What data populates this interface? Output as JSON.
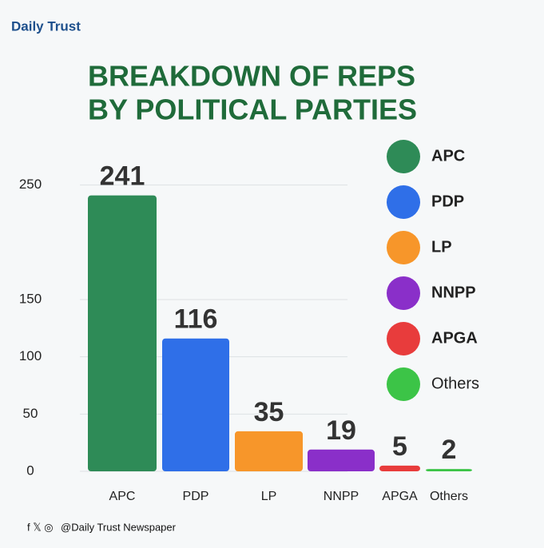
{
  "brand": "Daily Trust",
  "footer": "@Daily Trust Newspaper",
  "chart_data": {
    "type": "bar",
    "title": [
      "BREAKDOWN OF REPS",
      "BY POLITICAL PARTIES"
    ],
    "categories": [
      "APC",
      "PDP",
      "LP",
      "NNPP",
      "APGA",
      "Others"
    ],
    "values": [
      241,
      116,
      35,
      19,
      5,
      2
    ],
    "colors": [
      "#2e8b57",
      "#2f6fe8",
      "#f7962a",
      "#8a2fc9",
      "#e83c3c",
      "#3cc447"
    ],
    "ylim": [
      0,
      270
    ],
    "yticks": [
      0,
      50,
      100,
      150,
      250
    ],
    "grid": true,
    "legend": "right"
  }
}
